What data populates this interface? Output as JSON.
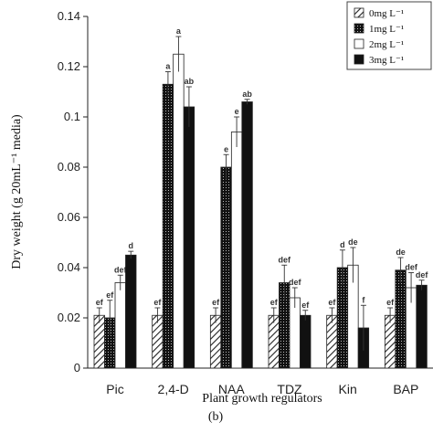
{
  "chart_data": {
    "type": "bar",
    "title": "",
    "xlabel": "Plant growth regulators",
    "ylabel": "Dry weight (g 20mL⁻¹ media)",
    "caption": "(b)",
    "ylim": [
      0,
      0.14
    ],
    "yticks": [
      "0",
      "0.02",
      "0.04",
      "0.06",
      "0.08",
      "0.1",
      "0.12",
      "0.14"
    ],
    "categories": [
      "Pic",
      "2,4-D",
      "NAA",
      "TDZ",
      "Kin",
      "BAP"
    ],
    "legend_position": "top-right",
    "series": [
      {
        "name": "0mg L⁻¹",
        "pattern": "hatch",
        "values": [
          0.021,
          0.021,
          0.021,
          0.021,
          0.021,
          0.021
        ],
        "errors": [
          0.003,
          0.003,
          0.003,
          0.003,
          0.003,
          0.003
        ],
        "labels": [
          "ef",
          "ef",
          "ef",
          "ef",
          "ef",
          "ef"
        ]
      },
      {
        "name": "1mg L⁻¹",
        "pattern": "dots",
        "values": [
          0.02,
          0.113,
          0.08,
          0.034,
          0.04,
          0.039
        ],
        "errors": [
          0.007,
          0.005,
          0.005,
          0.007,
          0.007,
          0.005
        ],
        "labels": [
          "ef",
          "a",
          "e",
          "def",
          "d",
          "de"
        ]
      },
      {
        "name": "2mg L⁻¹",
        "pattern": "white",
        "values": [
          0.034,
          0.125,
          0.094,
          0.028,
          0.041,
          0.032
        ],
        "errors": [
          0.003,
          0.007,
          0.006,
          0.004,
          0.007,
          0.006
        ],
        "labels": [
          "def",
          "a",
          "e",
          "def",
          "de",
          "def"
        ]
      },
      {
        "name": "3mg L⁻¹",
        "pattern": "black",
        "values": [
          0.045,
          0.104,
          0.106,
          0.021,
          0.016,
          0.033
        ],
        "errors": [
          0.0015,
          0.008,
          0.001,
          0.002,
          0.009,
          0.002
        ],
        "labels": [
          "d",
          "ab",
          "ab",
          "ef",
          "f",
          "def"
        ]
      }
    ],
    "colors": {
      "axis": "#222222",
      "bar_fill": "#111111",
      "hatch": "#222222",
      "white": "#ffffff"
    }
  }
}
